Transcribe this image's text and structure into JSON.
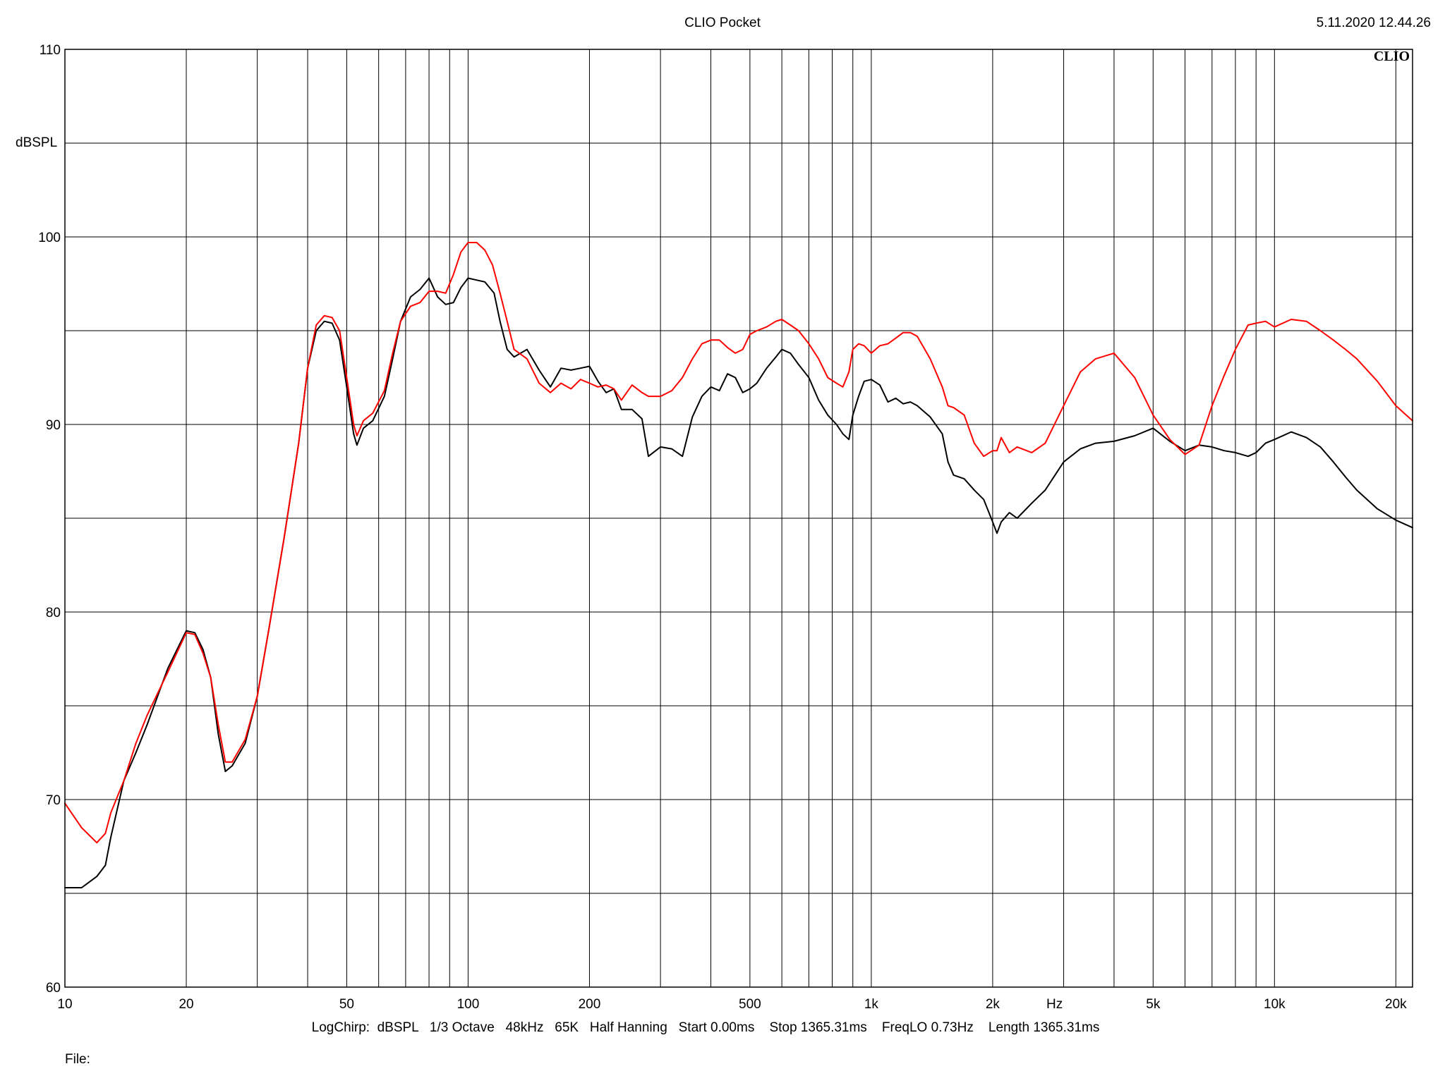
{
  "header": {
    "title": "CLIO Pocket",
    "timestamp": "5.11.2020 12.44.26",
    "logo": "CLIO"
  },
  "footer": {
    "settings": "LogChirp:  dBSPL   1/3 Octave   48kHz   65K   Half Hanning   Start 0.00ms    Stop 1365.31ms    FreqLO 0.73Hz    Length 1365.31ms",
    "file_label": "File:"
  },
  "colors": {
    "background": "#ffffff",
    "grid": "#000000",
    "series_black": "#000000",
    "series_red": "#ff0000"
  },
  "chart_data": {
    "type": "line",
    "title": "CLIO Pocket",
    "xlabel": "Hz",
    "ylabel": "dBSPL",
    "x_scale": "log",
    "xlim": [
      10,
      22000
    ],
    "ylim": [
      60,
      110
    ],
    "grid": true,
    "x_ticks": [
      {
        "value": 10,
        "label": "10"
      },
      {
        "value": 20,
        "label": "20"
      },
      {
        "value": 50,
        "label": "50"
      },
      {
        "value": 100,
        "label": "100"
      },
      {
        "value": 200,
        "label": "200"
      },
      {
        "value": 500,
        "label": "500"
      },
      {
        "value": 1000,
        "label": "1k"
      },
      {
        "value": 2000,
        "label": "2k"
      },
      {
        "value": 5000,
        "label": "5k"
      },
      {
        "value": 10000,
        "label": "10k"
      },
      {
        "value": 20000,
        "label": "20k"
      }
    ],
    "x_gridlines": [
      10,
      20,
      30,
      40,
      50,
      60,
      70,
      80,
      90,
      100,
      200,
      300,
      400,
      500,
      600,
      700,
      800,
      900,
      1000,
      2000,
      3000,
      4000,
      5000,
      6000,
      7000,
      8000,
      9000,
      10000,
      20000
    ],
    "y_ticks": [
      {
        "value": 60,
        "label": "60"
      },
      {
        "value": 70,
        "label": "70"
      },
      {
        "value": 80,
        "label": "80"
      },
      {
        "value": 90,
        "label": "90"
      },
      {
        "value": 100,
        "label": "100"
      },
      {
        "value": 110,
        "label": "110"
      }
    ],
    "y_gridlines": [
      60,
      65,
      70,
      75,
      80,
      85,
      90,
      95,
      100,
      105,
      110
    ],
    "series": [
      {
        "color": "#000000",
        "points": [
          [
            10,
            65.3
          ],
          [
            11,
            65.3
          ],
          [
            12,
            65.9
          ],
          [
            12.6,
            66.5
          ],
          [
            13,
            68.0
          ],
          [
            14,
            71.0
          ],
          [
            15,
            72.5
          ],
          [
            16,
            74.0
          ],
          [
            18,
            77.0
          ],
          [
            20,
            79.0
          ],
          [
            21,
            78.9
          ],
          [
            22,
            78.0
          ],
          [
            23,
            76.5
          ],
          [
            24,
            73.5
          ],
          [
            25,
            71.5
          ],
          [
            26,
            71.8
          ],
          [
            28,
            73.0
          ],
          [
            30,
            75.5
          ],
          [
            32,
            79.0
          ],
          [
            35,
            84.0
          ],
          [
            38,
            89.0
          ],
          [
            40,
            93.0
          ],
          [
            42,
            95.0
          ],
          [
            44,
            95.5
          ],
          [
            46,
            95.4
          ],
          [
            48,
            94.5
          ],
          [
            50,
            92.0
          ],
          [
            52,
            89.5
          ],
          [
            53,
            88.9
          ],
          [
            55,
            89.8
          ],
          [
            58,
            90.2
          ],
          [
            62,
            91.5
          ],
          [
            65,
            93.5
          ],
          [
            68,
            95.5
          ],
          [
            72,
            96.8
          ],
          [
            76,
            97.2
          ],
          [
            80,
            97.8
          ],
          [
            84,
            96.8
          ],
          [
            88,
            96.4
          ],
          [
            92,
            96.5
          ],
          [
            96,
            97.3
          ],
          [
            100,
            97.8
          ],
          [
            110,
            97.6
          ],
          [
            116,
            97.0
          ],
          [
            120,
            95.5
          ],
          [
            125,
            94.0
          ],
          [
            130,
            93.6
          ],
          [
            140,
            94.0
          ],
          [
            150,
            92.9
          ],
          [
            160,
            92.0
          ],
          [
            170,
            93.0
          ],
          [
            180,
            92.9
          ],
          [
            190,
            93.0
          ],
          [
            200,
            93.1
          ],
          [
            210,
            92.3
          ],
          [
            220,
            91.7
          ],
          [
            230,
            91.9
          ],
          [
            240,
            90.8
          ],
          [
            255,
            90.8
          ],
          [
            270,
            90.3
          ],
          [
            280,
            88.3
          ],
          [
            300,
            88.8
          ],
          [
            320,
            88.7
          ],
          [
            340,
            88.3
          ],
          [
            360,
            90.4
          ],
          [
            380,
            91.5
          ],
          [
            400,
            92.0
          ],
          [
            420,
            91.8
          ],
          [
            440,
            92.7
          ],
          [
            460,
            92.5
          ],
          [
            480,
            91.7
          ],
          [
            500,
            91.9
          ],
          [
            520,
            92.2
          ],
          [
            550,
            93.0
          ],
          [
            580,
            93.6
          ],
          [
            600,
            94.0
          ],
          [
            630,
            93.8
          ],
          [
            660,
            93.2
          ],
          [
            700,
            92.5
          ],
          [
            740,
            91.3
          ],
          [
            780,
            90.5
          ],
          [
            820,
            90.0
          ],
          [
            850,
            89.5
          ],
          [
            880,
            89.2
          ],
          [
            900,
            90.5
          ],
          [
            930,
            91.5
          ],
          [
            960,
            92.3
          ],
          [
            1000,
            92.4
          ],
          [
            1050,
            92.1
          ],
          [
            1100,
            91.2
          ],
          [
            1150,
            91.4
          ],
          [
            1200,
            91.1
          ],
          [
            1250,
            91.2
          ],
          [
            1300,
            91.0
          ],
          [
            1400,
            90.4
          ],
          [
            1500,
            89.5
          ],
          [
            1550,
            88.0
          ],
          [
            1600,
            87.3
          ],
          [
            1700,
            87.1
          ],
          [
            1800,
            86.5
          ],
          [
            1900,
            86.0
          ],
          [
            2000,
            84.8
          ],
          [
            2050,
            84.2
          ],
          [
            2100,
            84.8
          ],
          [
            2200,
            85.3
          ],
          [
            2300,
            85.0
          ],
          [
            2500,
            85.8
          ],
          [
            2700,
            86.5
          ],
          [
            3000,
            88.0
          ],
          [
            3300,
            88.7
          ],
          [
            3600,
            89.0
          ],
          [
            4000,
            89.1
          ],
          [
            4500,
            89.4
          ],
          [
            5000,
            89.8
          ],
          [
            5500,
            89.1
          ],
          [
            6000,
            88.6
          ],
          [
            6500,
            88.9
          ],
          [
            7000,
            88.8
          ],
          [
            7500,
            88.6
          ],
          [
            8000,
            88.5
          ],
          [
            8600,
            88.3
          ],
          [
            9000,
            88.5
          ],
          [
            9500,
            89.0
          ],
          [
            10000,
            89.2
          ],
          [
            11000,
            89.6
          ],
          [
            12000,
            89.3
          ],
          [
            13000,
            88.8
          ],
          [
            14000,
            88.0
          ],
          [
            15000,
            87.2
          ],
          [
            16000,
            86.5
          ],
          [
            18000,
            85.5
          ],
          [
            20000,
            84.9
          ],
          [
            22000,
            84.5
          ]
        ]
      },
      {
        "color": "#ff0000",
        "points": [
          [
            10,
            69.8
          ],
          [
            11,
            68.5
          ],
          [
            12,
            67.7
          ],
          [
            12.6,
            68.2
          ],
          [
            13,
            69.3
          ],
          [
            14,
            71.0
          ],
          [
            15,
            73.0
          ],
          [
            16,
            74.5
          ],
          [
            18,
            76.8
          ],
          [
            20,
            78.9
          ],
          [
            21,
            78.8
          ],
          [
            22,
            77.8
          ],
          [
            23,
            76.5
          ],
          [
            24,
            74.0
          ],
          [
            25,
            72.0
          ],
          [
            26,
            72.0
          ],
          [
            28,
            73.2
          ],
          [
            30,
            75.5
          ],
          [
            32,
            79.0
          ],
          [
            35,
            84.0
          ],
          [
            38,
            89.0
          ],
          [
            40,
            93.0
          ],
          [
            42,
            95.3
          ],
          [
            44,
            95.8
          ],
          [
            46,
            95.7
          ],
          [
            48,
            95.0
          ],
          [
            50,
            92.5
          ],
          [
            52,
            90.0
          ],
          [
            53,
            89.4
          ],
          [
            55,
            90.2
          ],
          [
            58,
            90.6
          ],
          [
            62,
            91.8
          ],
          [
            65,
            93.8
          ],
          [
            68,
            95.5
          ],
          [
            72,
            96.3
          ],
          [
            76,
            96.5
          ],
          [
            80,
            97.1
          ],
          [
            84,
            97.1
          ],
          [
            88,
            97.0
          ],
          [
            92,
            98.0
          ],
          [
            96,
            99.2
          ],
          [
            100,
            99.7
          ],
          [
            105,
            99.7
          ],
          [
            110,
            99.3
          ],
          [
            115,
            98.5
          ],
          [
            120,
            97.0
          ],
          [
            125,
            95.5
          ],
          [
            130,
            94.0
          ],
          [
            140,
            93.5
          ],
          [
            150,
            92.2
          ],
          [
            160,
            91.7
          ],
          [
            170,
            92.2
          ],
          [
            180,
            91.9
          ],
          [
            190,
            92.4
          ],
          [
            200,
            92.2
          ],
          [
            210,
            92.0
          ],
          [
            220,
            92.1
          ],
          [
            230,
            91.9
          ],
          [
            240,
            91.3
          ],
          [
            255,
            92.1
          ],
          [
            270,
            91.7
          ],
          [
            280,
            91.5
          ],
          [
            300,
            91.5
          ],
          [
            320,
            91.8
          ],
          [
            340,
            92.5
          ],
          [
            360,
            93.5
          ],
          [
            380,
            94.3
          ],
          [
            400,
            94.5
          ],
          [
            420,
            94.5
          ],
          [
            440,
            94.1
          ],
          [
            460,
            93.8
          ],
          [
            480,
            94.0
          ],
          [
            500,
            94.8
          ],
          [
            520,
            95.0
          ],
          [
            550,
            95.2
          ],
          [
            580,
            95.5
          ],
          [
            600,
            95.6
          ],
          [
            630,
            95.3
          ],
          [
            660,
            95.0
          ],
          [
            700,
            94.3
          ],
          [
            740,
            93.5
          ],
          [
            780,
            92.5
          ],
          [
            820,
            92.2
          ],
          [
            850,
            92.0
          ],
          [
            880,
            92.8
          ],
          [
            900,
            94.0
          ],
          [
            930,
            94.3
          ],
          [
            960,
            94.2
          ],
          [
            1000,
            93.8
          ],
          [
            1050,
            94.2
          ],
          [
            1100,
            94.3
          ],
          [
            1150,
            94.6
          ],
          [
            1200,
            94.9
          ],
          [
            1250,
            94.9
          ],
          [
            1300,
            94.7
          ],
          [
            1400,
            93.5
          ],
          [
            1500,
            92.0
          ],
          [
            1550,
            91.0
          ],
          [
            1600,
            90.9
          ],
          [
            1700,
            90.5
          ],
          [
            1800,
            89.0
          ],
          [
            1900,
            88.3
          ],
          [
            2000,
            88.6
          ],
          [
            2050,
            88.6
          ],
          [
            2100,
            89.3
          ],
          [
            2200,
            88.5
          ],
          [
            2300,
            88.8
          ],
          [
            2500,
            88.5
          ],
          [
            2700,
            89.0
          ],
          [
            3000,
            91.0
          ],
          [
            3300,
            92.8
          ],
          [
            3600,
            93.5
          ],
          [
            4000,
            93.8
          ],
          [
            4500,
            92.5
          ],
          [
            5000,
            90.5
          ],
          [
            5500,
            89.2
          ],
          [
            6000,
            88.4
          ],
          [
            6500,
            88.9
          ],
          [
            7000,
            91.0
          ],
          [
            7500,
            92.6
          ],
          [
            8000,
            94.0
          ],
          [
            8600,
            95.3
          ],
          [
            9000,
            95.4
          ],
          [
            9500,
            95.5
          ],
          [
            10000,
            95.2
          ],
          [
            11000,
            95.6
          ],
          [
            12000,
            95.5
          ],
          [
            13000,
            95.0
          ],
          [
            14000,
            94.5
          ],
          [
            15000,
            94.0
          ],
          [
            16000,
            93.5
          ],
          [
            18000,
            92.3
          ],
          [
            20000,
            91.0
          ],
          [
            22000,
            90.2
          ]
        ]
      }
    ]
  }
}
